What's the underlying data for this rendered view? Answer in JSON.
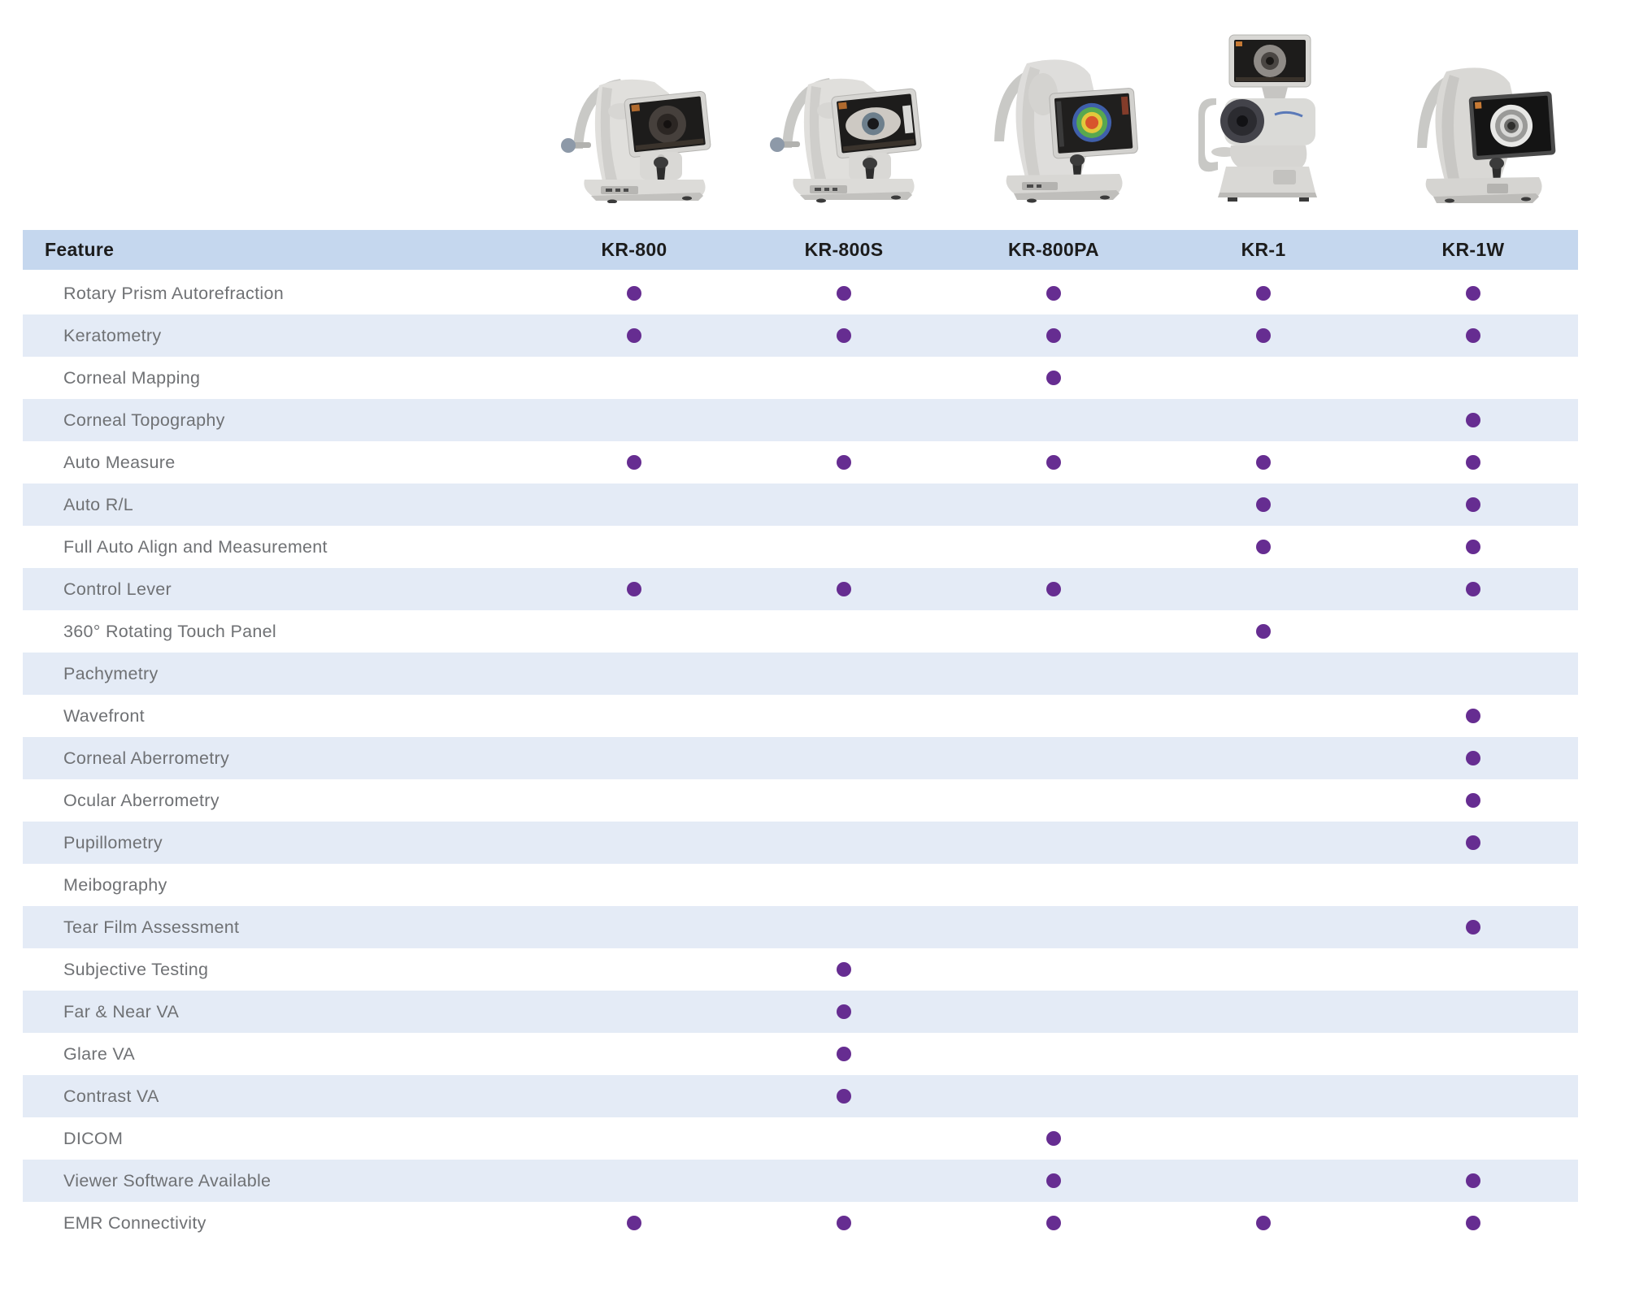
{
  "colors": {
    "header_bg": "#c5d7ee",
    "row_bg": "#ffffff",
    "row_alt_bg": "#e4ebf6",
    "dot": "#662d91",
    "header_text": "#1c1c1c",
    "label_text": "#6f7174"
  },
  "products": [
    {
      "id": "kr-800",
      "name": "KR-800"
    },
    {
      "id": "kr-800s",
      "name": "KR-800S"
    },
    {
      "id": "kr-800pa",
      "name": "KR-800PA"
    },
    {
      "id": "kr-1",
      "name": "KR-1"
    },
    {
      "id": "kr-1w",
      "name": "KR-1W"
    }
  ],
  "table": {
    "feature_header": "Feature",
    "columns": [
      "KR-800",
      "KR-800S",
      "KR-800PA",
      "KR-1",
      "KR-1W"
    ],
    "rows": [
      {
        "label": "Rotary Prism Autorefraction",
        "dots": [
          true,
          true,
          true,
          true,
          true
        ]
      },
      {
        "label": "Keratometry",
        "dots": [
          true,
          true,
          true,
          true,
          true
        ]
      },
      {
        "label": "Corneal Mapping",
        "dots": [
          false,
          false,
          true,
          false,
          false
        ]
      },
      {
        "label": "Corneal Topography",
        "dots": [
          false,
          false,
          false,
          false,
          true
        ]
      },
      {
        "label": "Auto Measure",
        "dots": [
          true,
          true,
          true,
          true,
          true
        ]
      },
      {
        "label": "Auto R/L",
        "dots": [
          false,
          false,
          false,
          true,
          true
        ]
      },
      {
        "label": "Full Auto Align and Measurement",
        "dots": [
          false,
          false,
          false,
          true,
          true
        ]
      },
      {
        "label": "Control Lever",
        "dots": [
          true,
          true,
          true,
          false,
          true
        ]
      },
      {
        "label": "360° Rotating Touch Panel",
        "dots": [
          false,
          false,
          false,
          true,
          false
        ]
      },
      {
        "label": "Pachymetry",
        "dots": [
          false,
          false,
          false,
          false,
          false
        ]
      },
      {
        "label": "Wavefront",
        "dots": [
          false,
          false,
          false,
          false,
          true
        ]
      },
      {
        "label": "Corneal Aberrometry",
        "dots": [
          false,
          false,
          false,
          false,
          true
        ]
      },
      {
        "label": "Ocular Aberrometry",
        "dots": [
          false,
          false,
          false,
          false,
          true
        ]
      },
      {
        "label": "Pupillometry",
        "dots": [
          false,
          false,
          false,
          false,
          true
        ]
      },
      {
        "label": "Meibography",
        "dots": [
          false,
          false,
          false,
          false,
          false
        ]
      },
      {
        "label": "Tear Film Assessment",
        "dots": [
          false,
          false,
          false,
          false,
          true
        ]
      },
      {
        "label": "Subjective Testing",
        "dots": [
          false,
          true,
          false,
          false,
          false
        ]
      },
      {
        "label": "Far & Near VA",
        "dots": [
          false,
          true,
          false,
          false,
          false
        ]
      },
      {
        "label": "Glare VA",
        "dots": [
          false,
          true,
          false,
          false,
          false
        ]
      },
      {
        "label": "Contrast VA",
        "dots": [
          false,
          true,
          false,
          false,
          false
        ]
      },
      {
        "label": "DICOM",
        "dots": [
          false,
          false,
          true,
          false,
          false
        ]
      },
      {
        "label": "Viewer Software Available",
        "dots": [
          false,
          false,
          true,
          false,
          true
        ]
      },
      {
        "label": "EMR Connectivity",
        "dots": [
          true,
          true,
          true,
          true,
          true
        ]
      }
    ]
  }
}
